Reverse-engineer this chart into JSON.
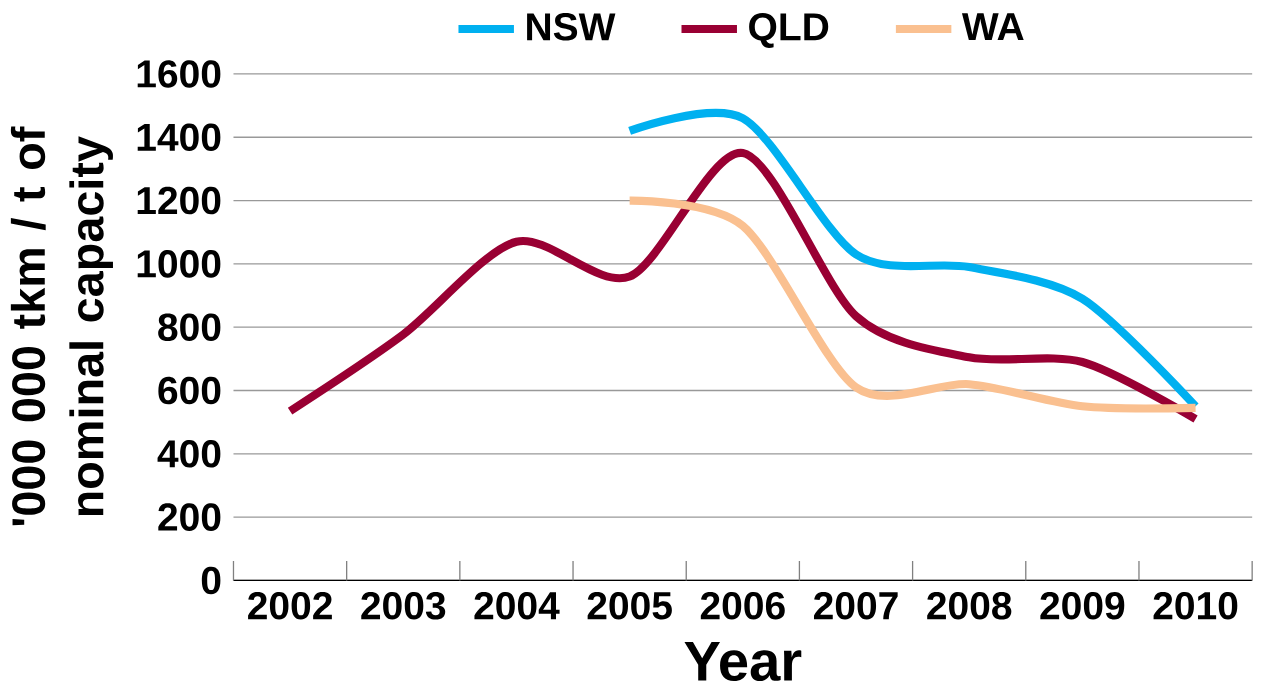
{
  "chart_data": {
    "type": "line",
    "xlabel": "Year",
    "ylabel": "'000 000 tkm / t of nominal capacity",
    "categories": [
      "2002",
      "2003",
      "2004",
      "2005",
      "2006",
      "2007",
      "2008",
      "2009",
      "2010"
    ],
    "series": [
      {
        "name": "NSW",
        "color": "#00b0f0",
        "values": [
          null,
          null,
          null,
          1420,
          1460,
          1030,
          990,
          890,
          550
        ]
      },
      {
        "name": "QLD",
        "color": "#990033",
        "values": [
          535,
          777,
          1070,
          960,
          1350,
          835,
          705,
          690,
          510
        ]
      },
      {
        "name": "WA",
        "color": "#fac090",
        "values": [
          null,
          null,
          null,
          1200,
          1120,
          610,
          620,
          550,
          545
        ]
      }
    ],
    "ylim": [
      0,
      1600
    ],
    "yticks": [
      0,
      200,
      400,
      600,
      800,
      1000,
      1200,
      1400,
      1600
    ],
    "grid": "y",
    "legend": "top",
    "marker": "none",
    "line_style": "solid"
  }
}
